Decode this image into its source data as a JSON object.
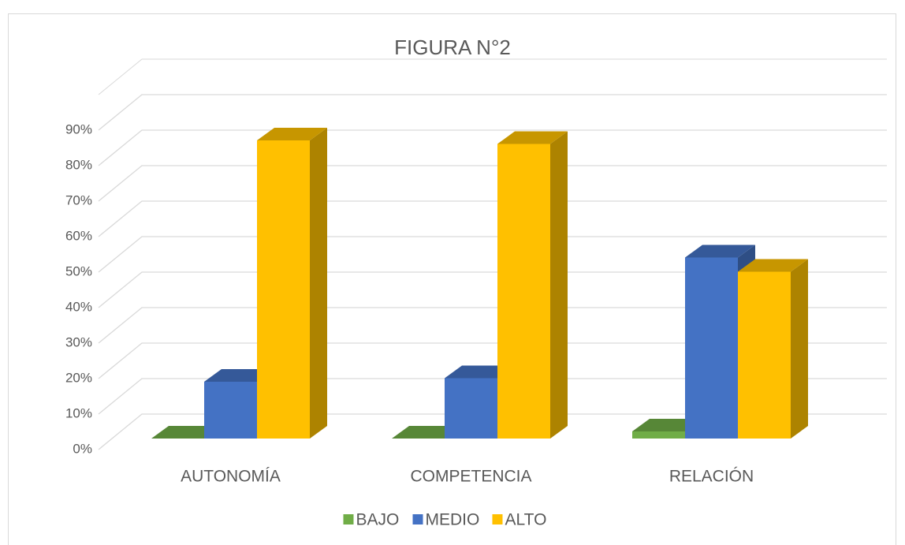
{
  "chart_data": {
    "type": "bar3d",
    "title": "FIGURA N°2",
    "categories": [
      "AUTONOMÍA",
      "COMPETENCIA",
      "RELACIÓN"
    ],
    "series": [
      {
        "name": "BAJO",
        "color": "#70ad47",
        "values": [
          0,
          0,
          2
        ]
      },
      {
        "name": "MEDIO",
        "color": "#4472c4",
        "values": [
          16,
          17,
          51
        ]
      },
      {
        "name": "ALTO",
        "color": "#ffc000",
        "values": [
          84,
          83,
          47
        ]
      }
    ],
    "ylim": [
      0,
      100
    ],
    "yticks": [
      {
        "value": 0,
        "label": "0%"
      },
      {
        "value": 10,
        "label": "10%"
      },
      {
        "value": 20,
        "label": "20%"
      },
      {
        "value": 30,
        "label": "30%"
      },
      {
        "value": 40,
        "label": "40%"
      },
      {
        "value": 50,
        "label": "50%"
      },
      {
        "value": 60,
        "label": "60%"
      },
      {
        "value": 70,
        "label": "70%"
      },
      {
        "value": 80,
        "label": "80%"
      },
      {
        "value": 90,
        "label": "90%"
      }
    ],
    "grid": true,
    "legend": "bottom"
  }
}
